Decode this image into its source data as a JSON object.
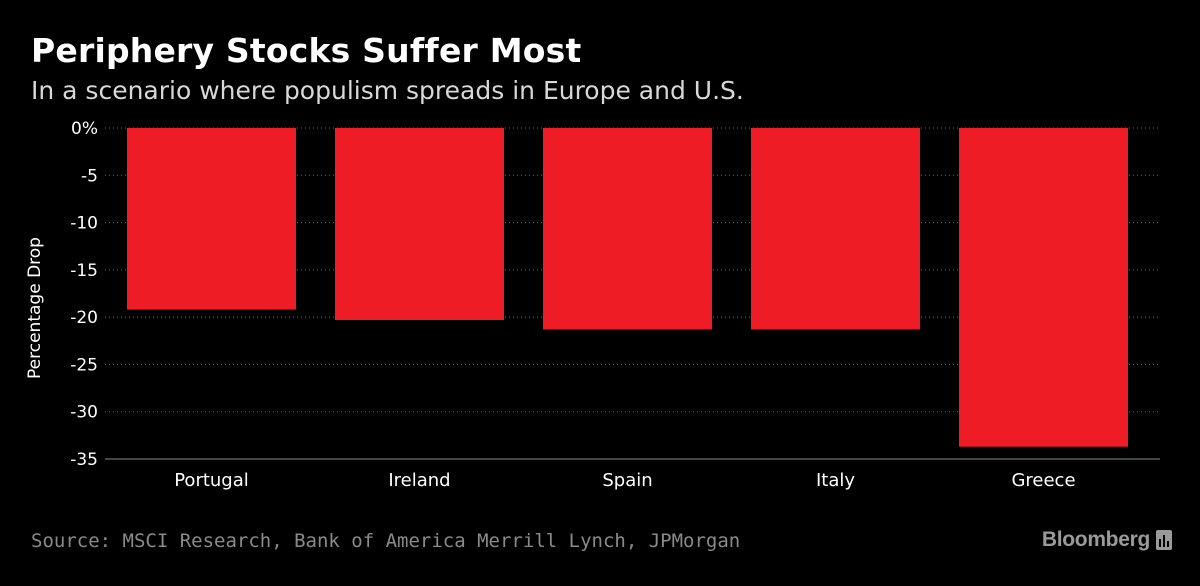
{
  "header": {
    "title": "Periphery Stocks Suffer Most",
    "subtitle": "In a scenario where populism spreads in Europe and U.S."
  },
  "footer": {
    "source": "Source: MSCI Research, Bank of America Merrill Lynch, JPMorgan",
    "brand": "Bloomberg",
    "brand_icon": "bloomberg-chart-icon"
  },
  "colors": {
    "background": "#000000",
    "bar": "#ee1c25",
    "gridline": "#6a6a6a",
    "axis_text": "#ffffff"
  },
  "chart_data": {
    "type": "bar",
    "title": "Periphery Stocks Suffer Most",
    "subtitle": "In a scenario where populism spreads in Europe and U.S.",
    "categories": [
      "Portugal",
      "Ireland",
      "Spain",
      "Italy",
      "Greece"
    ],
    "values": [
      -19.2,
      -20.3,
      -21.3,
      -21.3,
      -33.7
    ],
    "xlabel": "",
    "ylabel": "Percentage Drop",
    "ylim": [
      -35,
      0
    ],
    "yticks": [
      0,
      -5,
      -10,
      -15,
      -20,
      -25,
      -30,
      -35
    ],
    "ytick_labels": [
      "0%",
      "-5",
      "-10",
      "-15",
      "-20",
      "-25",
      "-30",
      "-35"
    ],
    "grid": true,
    "legend": "none"
  }
}
